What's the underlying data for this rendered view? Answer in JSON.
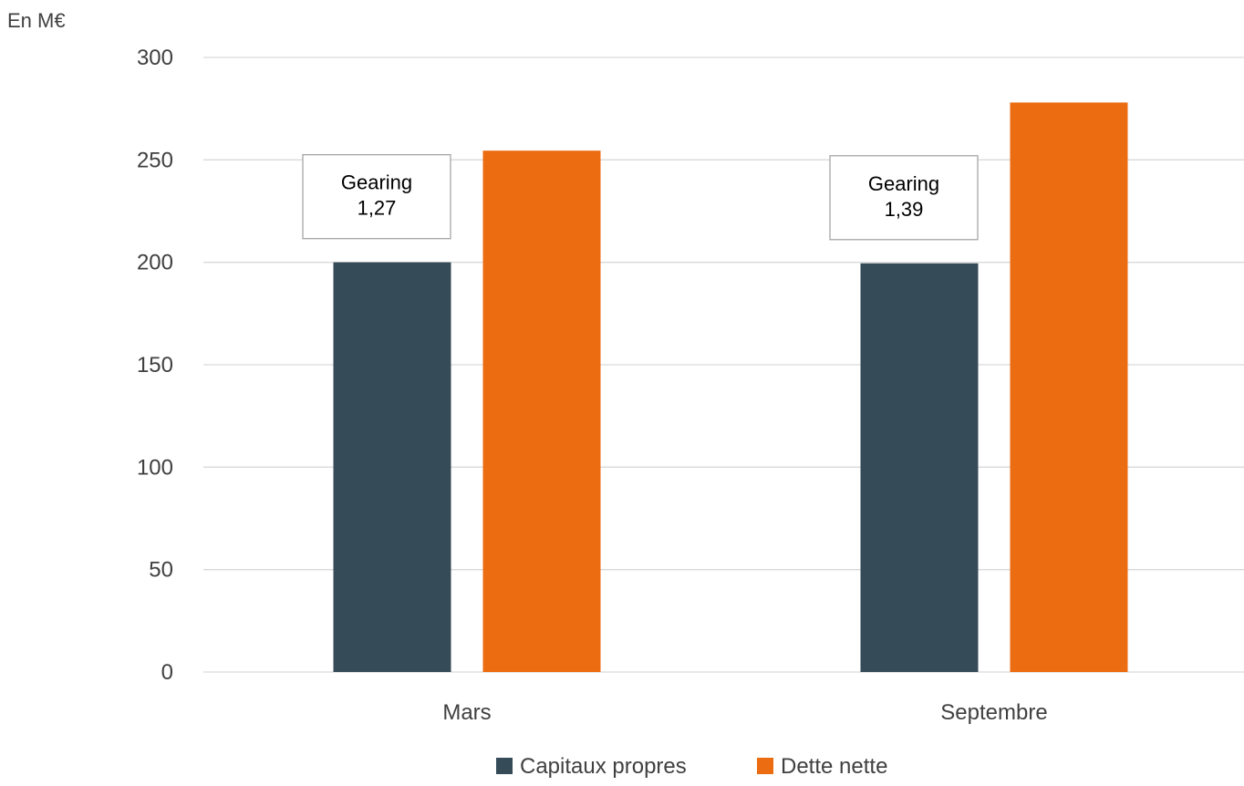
{
  "chart_data": {
    "type": "bar",
    "unit_label": "En M€",
    "categories": [
      "Mars",
      "Septembre"
    ],
    "series": [
      {
        "name": "Capitaux propres",
        "values": [
          200,
          199.5
        ]
      },
      {
        "name": "Dette nette",
        "values": [
          254.5,
          278
        ]
      }
    ],
    "ylim": [
      0,
      300
    ],
    "yticks": [
      0,
      50,
      100,
      150,
      200,
      250,
      300
    ],
    "grid": true,
    "legend_position": "bottom",
    "annotations": [
      {
        "category": "Mars",
        "lines": [
          "Gearing",
          "1,27"
        ]
      },
      {
        "category": "Septembre",
        "lines": [
          "Gearing",
          "1,39"
        ]
      }
    ],
    "colors": {
      "Capitaux propres": "#364B58",
      "Dette nette": "#EB6C11",
      "grid": "#D9D9D9",
      "text": "#404040",
      "annotation_border": "#A6A6A6"
    }
  }
}
